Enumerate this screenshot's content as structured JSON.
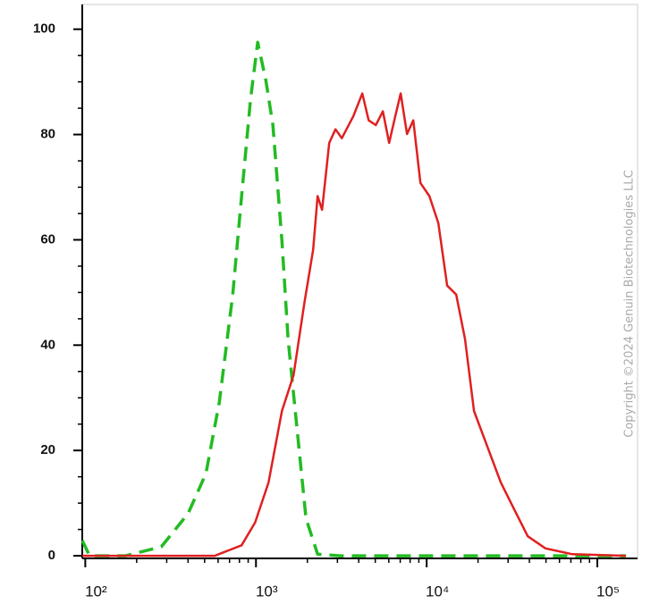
{
  "chart_data": {
    "type": "line",
    "log_x": true,
    "xlim": [
      96,
      172000
    ],
    "ylim": [
      -0.5,
      104.7
    ],
    "xticks": [
      {
        "value": 100,
        "label": "10²"
      },
      {
        "value": 1000,
        "label": "10³"
      },
      {
        "value": 10000,
        "label": "10⁴"
      },
      {
        "value": 100000,
        "label": "10⁵"
      }
    ],
    "yticks": [
      0,
      20,
      40,
      60,
      80,
      100
    ],
    "watermark": "Copyright ©2024 Genuin Biotechnologies LLC",
    "series": [
      {
        "color": "#22bb22",
        "dash": true,
        "x": [
          96,
          106,
          172,
          279,
          400,
          509,
          610,
          731,
          824,
          931,
          1024,
          1142,
          1257,
          1419,
          1543,
          1741,
          1963,
          2296,
          3105,
          147000
        ],
        "values": [
          2.9,
          0,
          0,
          1.7,
          8,
          15.6,
          29.2,
          49.6,
          68.3,
          86.9,
          97.5,
          90.3,
          81.8,
          59.8,
          41.1,
          24.1,
          7.1,
          0.3,
          0,
          0
        ]
      },
      {
        "color": "#e02020",
        "dash": false,
        "x": [
          96,
          574,
          824,
          988,
          1184,
          1419,
          1660,
          1918,
          2163,
          2296,
          2440,
          2686,
          2923,
          3183,
          3722,
          4199,
          4571,
          5035,
          5540,
          6026,
          6555,
          7047,
          7674,
          8345,
          9190,
          10370,
          11700,
          13190,
          14890,
          16790,
          18930,
          22690,
          27210,
          32610,
          39090,
          49680,
          71290,
          147200
        ],
        "values": [
          0,
          0,
          2,
          6.3,
          13.9,
          27.5,
          34.3,
          47.9,
          58.1,
          68.3,
          65.7,
          78.4,
          81,
          79.3,
          83.5,
          87.8,
          82.7,
          81.8,
          84.4,
          78.4,
          83.5,
          87.8,
          80.1,
          82.7,
          70.8,
          68.3,
          63.2,
          51.3,
          49.6,
          41.1,
          27.5,
          20.7,
          13.9,
          8.8,
          3.7,
          1.4,
          0.3,
          0
        ]
      }
    ]
  }
}
